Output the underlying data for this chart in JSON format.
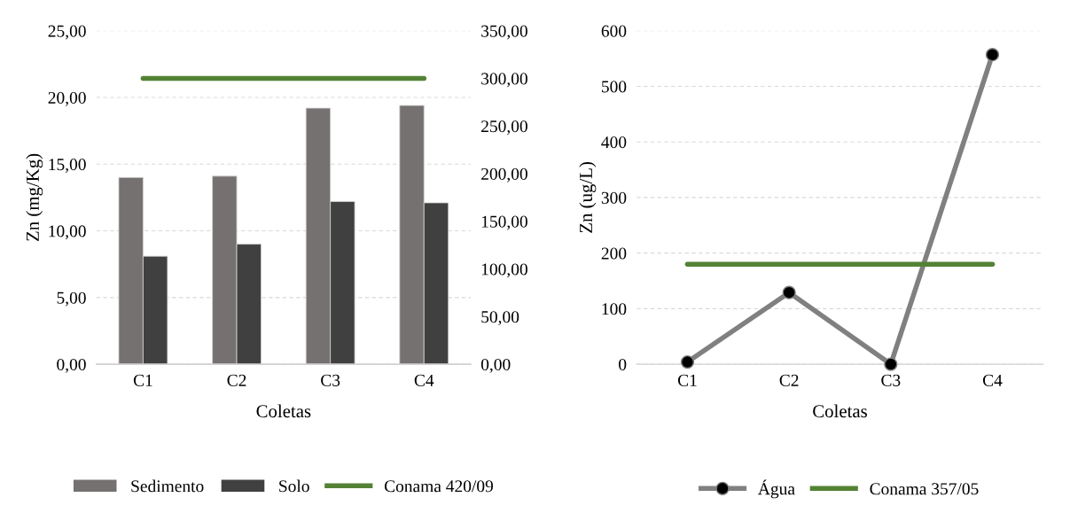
{
  "chart_data": [
    {
      "type": "bar",
      "xlabel": "Coletas",
      "ylabel": "Zn (mg/Kg)",
      "categories": [
        "C1",
        "C2",
        "C3",
        "C4"
      ],
      "series": [
        {
          "name": "Sedimento",
          "color": "#767171",
          "values": [
            14.0,
            14.1,
            19.2,
            19.4
          ]
        },
        {
          "name": "Solo",
          "color": "#404040",
          "values": [
            8.1,
            9.0,
            12.2,
            12.1
          ]
        },
        {
          "name": "Conama 420/09",
          "type": "line",
          "axis": "y2",
          "color": "#548235",
          "values": [
            300,
            300,
            300,
            300
          ]
        }
      ],
      "ylim": [
        0,
        25
      ],
      "yticks": [
        {
          "value": 0,
          "label": "0,00"
        },
        {
          "value": 5,
          "label": "5,00"
        },
        {
          "value": 10,
          "label": "10,00"
        },
        {
          "value": 15,
          "label": "15,00"
        },
        {
          "value": 20,
          "label": "20,00"
        },
        {
          "value": 25,
          "label": "25,00"
        }
      ],
      "y2lim": [
        0,
        350
      ],
      "y2ticks": [
        {
          "value": 0,
          "label": "0,00"
        },
        {
          "value": 50,
          "label": "50,00"
        },
        {
          "value": 100,
          "label": "100,00"
        },
        {
          "value": 150,
          "label": "150,00"
        },
        {
          "value": 200,
          "label": "200,00"
        },
        {
          "value": 250,
          "label": "250,00"
        },
        {
          "value": 300,
          "label": "300,00"
        },
        {
          "value": 350,
          "label": "350,00"
        }
      ],
      "grid": "y",
      "legend": "bottom"
    },
    {
      "type": "line",
      "xlabel": "Coletas",
      "ylabel": "Zn (ug/L)",
      "categories": [
        "C1",
        "C2",
        "C3",
        "C4"
      ],
      "series": [
        {
          "name": "Água",
          "color": "#808080",
          "marker": "circle",
          "values": [
            4,
            129,
            0,
            557
          ]
        },
        {
          "name": "Conama 357/05",
          "color": "#548235",
          "values": [
            180,
            180,
            180,
            180
          ]
        }
      ],
      "ylim": [
        0,
        600
      ],
      "yticks": [
        0,
        100,
        200,
        300,
        400,
        500,
        600
      ],
      "grid": "y",
      "legend": "bottom"
    }
  ]
}
